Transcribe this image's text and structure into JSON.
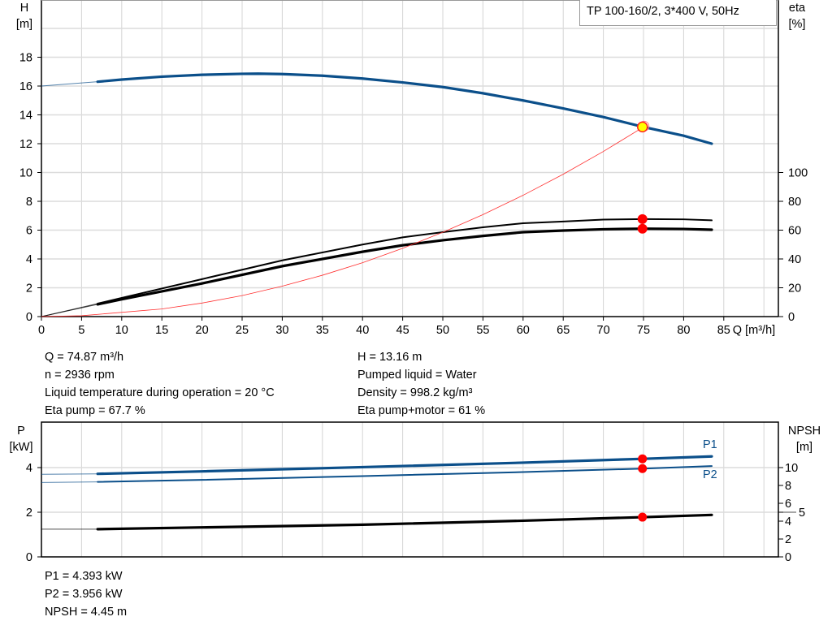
{
  "legend_title": "TP 100-160/2, 3*400 V, 50Hz",
  "chart_data": [
    {
      "type": "line",
      "title": "",
      "xlabel": "Q [m³/h]",
      "ylabel_left": [
        "H",
        "[m]"
      ],
      "ylabel_right": [
        "eta",
        "[%]"
      ],
      "xlim": [
        0,
        90
      ],
      "ylim_left": [
        0,
        20
      ],
      "ylim_right": [
        0,
        100
      ],
      "x_ticks": [
        0,
        5,
        10,
        15,
        20,
        25,
        30,
        35,
        40,
        45,
        50,
        55,
        60,
        65,
        70,
        75,
        80,
        85
      ],
      "y_ticks_left": [
        0,
        2,
        4,
        6,
        8,
        10,
        12,
        14,
        16,
        18
      ],
      "y_ticks_right": [
        0,
        20,
        40,
        60,
        80,
        100
      ],
      "grid": true,
      "series": [
        {
          "axis": "left",
          "kind": "head",
          "color": "#0b4f8a",
          "x": [
            0,
            7,
            10,
            15,
            20,
            25,
            27,
            30,
            35,
            40,
            45,
            50,
            55,
            60,
            65,
            70,
            75,
            80,
            83.5
          ],
          "y": [
            16.0,
            16.3,
            16.45,
            16.65,
            16.78,
            16.85,
            16.86,
            16.83,
            16.72,
            16.52,
            16.25,
            15.93,
            15.5,
            15.0,
            14.45,
            13.85,
            13.16,
            12.55,
            12.0
          ]
        },
        {
          "axis": "right",
          "kind": "eta-pump",
          "color": "#000000",
          "x": [
            0,
            7,
            10,
            20,
            30,
            40,
            45,
            50,
            55,
            60,
            65,
            70,
            75,
            80,
            83.5
          ],
          "y": [
            0,
            9,
            13,
            26,
            39,
            50,
            55,
            58.6,
            62,
            64.8,
            66,
            67.3,
            67.7,
            67.5,
            66.8
          ]
        },
        {
          "axis": "right",
          "kind": "eta-pump-motor",
          "color": "#000000",
          "x": [
            0,
            7,
            10,
            20,
            30,
            40,
            45,
            50,
            55,
            60,
            65,
            70,
            75,
            80,
            83.5
          ],
          "y": [
            0,
            8.5,
            12,
            23,
            35,
            45,
            49.5,
            53,
            56,
            58.6,
            59.7,
            60.6,
            61,
            60.8,
            60.3
          ]
        },
        {
          "axis": "left",
          "kind": "system-curve",
          "color": "#ff3030",
          "x": [
            0,
            5,
            10,
            15,
            20,
            25,
            30,
            35,
            40,
            45,
            50,
            55,
            60,
            65,
            70,
            75
          ],
          "y": [
            0,
            0.06,
            0.23,
            0.53,
            0.94,
            1.46,
            2.11,
            2.87,
            3.74,
            4.74,
            5.85,
            7.08,
            8.42,
            9.88,
            11.46,
            13.16
          ]
        }
      ],
      "operating_points": [
        {
          "axis": "left",
          "x": 74.87,
          "y": 13.16,
          "color": "#ffff00"
        },
        {
          "axis": "right",
          "x": 74.87,
          "y": 67.7,
          "color": "#ff0000"
        },
        {
          "axis": "right",
          "x": 74.87,
          "y": 61,
          "color": "#ff0000"
        }
      ]
    },
    {
      "type": "line",
      "ylabel_left": [
        "P",
        "[kW]"
      ],
      "ylabel_right": [
        "NPSH",
        "[m]"
      ],
      "xlim": [
        0,
        90
      ],
      "ylim_left": [
        0,
        5.5
      ],
      "y_ticks_left": [
        0,
        2,
        4
      ],
      "y_ticks_right": [
        0,
        2,
        4,
        5,
        6,
        8,
        10
      ],
      "grid": true,
      "series": [
        {
          "name": "P1",
          "axis": "left",
          "color": "#0b4f8a",
          "x": [
            0,
            7,
            20,
            40,
            60,
            75,
            83.5
          ],
          "y": [
            3.7,
            3.72,
            3.83,
            4.02,
            4.22,
            4.393,
            4.5
          ]
        },
        {
          "name": "P2",
          "axis": "left",
          "color": "#0b4f8a",
          "x": [
            0,
            7,
            20,
            40,
            60,
            75,
            83.5
          ],
          "y": [
            3.33,
            3.36,
            3.45,
            3.62,
            3.8,
            3.956,
            4.07
          ]
        },
        {
          "axis": "right",
          "kind": "npsh",
          "color": "#000000",
          "x": [
            0,
            7,
            20,
            40,
            60,
            75,
            83.5
          ],
          "y": [
            3.1,
            3.1,
            3.3,
            3.6,
            4.05,
            4.45,
            4.7
          ]
        }
      ],
      "operating_points": [
        {
          "axis": "left",
          "x": 74.87,
          "y": 4.393,
          "color": "#ff0000"
        },
        {
          "axis": "left",
          "x": 74.87,
          "y": 3.956,
          "color": "#ff0000"
        },
        {
          "axis": "right",
          "x": 74.87,
          "y": 4.45,
          "color": "#ff0000"
        }
      ]
    }
  ],
  "results_left": [
    "Q = 74.87 m³/h",
    "n = 2936 rpm",
    "Liquid temperature during operation = 20 °C",
    "Eta pump = 67.7 %"
  ],
  "results_right": [
    "H = 13.16 m",
    "Pumped liquid = Water",
    "Density = 998.2 kg/m³",
    "Eta pump+motor = 61 %"
  ],
  "results_bottom": [
    "P1 = 4.393 kW",
    "P2 = 3.956 kW",
    "NPSH = 4.45 m"
  ]
}
